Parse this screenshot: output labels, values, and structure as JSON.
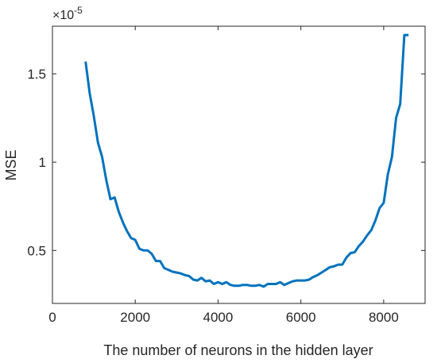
{
  "chart_data": {
    "type": "line",
    "title": "",
    "xlabel": "The number of neurons in the hidden layer",
    "ylabel": "MSE",
    "y_exponent_label": "×10",
    "y_exponent_value": "-5",
    "xlim": [
      0,
      9000
    ],
    "ylim": [
      0.2,
      1.77
    ],
    "xticks": [
      0,
      2000,
      4000,
      6000,
      8000
    ],
    "xtick_labels": [
      "0",
      "2000",
      "4000",
      "6000",
      "8000"
    ],
    "yticks": [
      0.5,
      1,
      1.5
    ],
    "ytick_labels": [
      "0.5",
      "1",
      "1.5"
    ],
    "grid": false,
    "series": [
      {
        "color": "#0072bd",
        "x": [
          800,
          900,
          1000,
          1100,
          1200,
          1300,
          1400,
          1500,
          1600,
          1700,
          1800,
          1900,
          2000,
          2100,
          2200,
          2300,
          2400,
          2500,
          2600,
          2700,
          2800,
          2900,
          3000,
          3100,
          3200,
          3300,
          3400,
          3500,
          3600,
          3700,
          3800,
          3900,
          4000,
          4100,
          4200,
          4300,
          4400,
          4500,
          4600,
          4700,
          4800,
          4900,
          5000,
          5100,
          5200,
          5300,
          5400,
          5500,
          5600,
          5700,
          5800,
          5900,
          6000,
          6100,
          6200,
          6300,
          6400,
          6500,
          6600,
          6700,
          6800,
          6900,
          7000,
          7100,
          7200,
          7300,
          7400,
          7500,
          7600,
          7700,
          7800,
          7900,
          8000,
          8100,
          8200,
          8300,
          8400,
          8500,
          8600
        ],
        "y": [
          1.57,
          1.39,
          1.26,
          1.11,
          1.03,
          0.9,
          0.79,
          0.8,
          0.72,
          0.66,
          0.61,
          0.57,
          0.56,
          0.51,
          0.5,
          0.5,
          0.48,
          0.44,
          0.44,
          0.4,
          0.39,
          0.38,
          0.375,
          0.37,
          0.36,
          0.355,
          0.335,
          0.33,
          0.345,
          0.325,
          0.33,
          0.31,
          0.32,
          0.31,
          0.32,
          0.305,
          0.3,
          0.3,
          0.305,
          0.305,
          0.3,
          0.3,
          0.305,
          0.295,
          0.31,
          0.31,
          0.31,
          0.32,
          0.305,
          0.315,
          0.325,
          0.33,
          0.33,
          0.33,
          0.335,
          0.35,
          0.36,
          0.375,
          0.39,
          0.405,
          0.41,
          0.42,
          0.42,
          0.46,
          0.485,
          0.49,
          0.525,
          0.55,
          0.585,
          0.615,
          0.67,
          0.74,
          0.77,
          0.93,
          1.03,
          1.25,
          1.33,
          1.72,
          1.72
        ]
      }
    ]
  }
}
